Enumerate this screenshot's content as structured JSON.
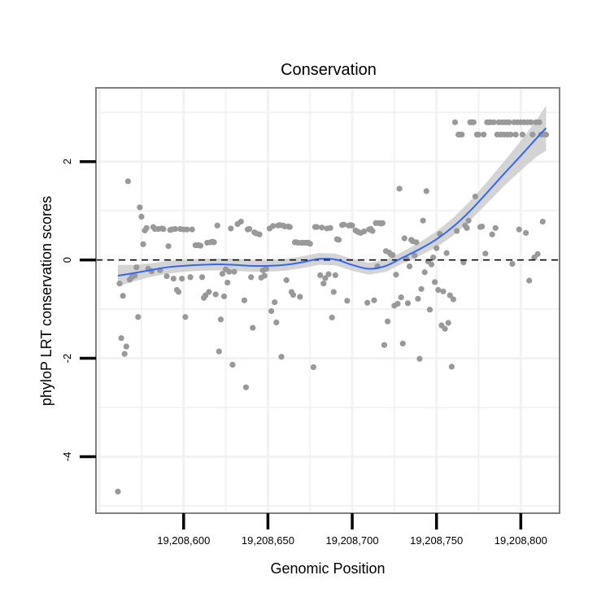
{
  "chart_data": {
    "type": "scatter",
    "title": "Conservation",
    "xlabel": "Genomic Position",
    "ylabel": "phyloP LRT conservation scores",
    "xlim": [
      19208548,
      19208823
    ],
    "ylim": [
      -5.15,
      3.5
    ],
    "x_ticks": [
      19208600,
      19208650,
      19208700,
      19208750,
      19208800
    ],
    "x_tick_labels": [
      "19,208,600",
      "19,208,650",
      "19,208,700",
      "19,208,750",
      "19,208,800"
    ],
    "y_ticks": [
      2,
      0,
      -2,
      -4
    ],
    "y_tick_labels": [
      "2",
      "0",
      "-2",
      "-4"
    ],
    "reference_line": 0,
    "colors": {
      "points": "#999999",
      "smooth": "#3366FF",
      "band": "#cccccc",
      "panel_border": "#808080",
      "grid": "#f2f2f2"
    },
    "points": [
      [
        19208561,
        -4.71
      ],
      [
        19208562,
        -0.48
      ],
      [
        19208563,
        -1.59
      ],
      [
        19208564,
        -0.73
      ],
      [
        19208565,
        -1.91
      ],
      [
        19208566,
        -1.76
      ],
      [
        19208567,
        1.6
      ],
      [
        19208568,
        -0.4
      ],
      [
        19208569,
        -0.36
      ],
      [
        19208570,
        -0.32
      ],
      [
        19208571,
        -0.32
      ],
      [
        19208572,
        -0.15
      ],
      [
        19208573,
        -1.16
      ],
      [
        19208574,
        1.07
      ],
      [
        19208575,
        0.88
      ],
      [
        19208576,
        0.32
      ],
      [
        19208577,
        0.6
      ],
      [
        19208578,
        0.65
      ],
      [
        19208579,
        -0.18
      ],
      [
        19208581,
        -0.23
      ],
      [
        19208582,
        0.67
      ],
      [
        19208583,
        0.63
      ],
      [
        19208585,
        0.63
      ],
      [
        19208586,
        -0.21
      ],
      [
        19208587,
        0.64
      ],
      [
        19208588,
        0.63
      ],
      [
        19208590,
        -0.33
      ],
      [
        19208591,
        0.28
      ],
      [
        19208592,
        0.61
      ],
      [
        19208593,
        0.62
      ],
      [
        19208594,
        -0.38
      ],
      [
        19208595,
        0.63
      ],
      [
        19208596,
        -0.61
      ],
      [
        19208597,
        -0.65
      ],
      [
        19208598,
        0.63
      ],
      [
        19208599,
        -0.38
      ],
      [
        19208600,
        0.62
      ],
      [
        19208601,
        -1.16
      ],
      [
        19208602,
        0.62
      ],
      [
        19208604,
        -0.35
      ],
      [
        19208605,
        0.62
      ],
      [
        19208607,
        0.3
      ],
      [
        19208608,
        0.3
      ],
      [
        19208609,
        0.3
      ],
      [
        19208610,
        0.29
      ],
      [
        19208611,
        -0.35
      ],
      [
        19208612,
        -0.77
      ],
      [
        19208613,
        -0.72
      ],
      [
        19208614,
        0.35
      ],
      [
        19208615,
        -0.65
      ],
      [
        19208616,
        0.36
      ],
      [
        19208617,
        0.37
      ],
      [
        19208618,
        0.36
      ],
      [
        19208619,
        -0.7
      ],
      [
        19208620,
        0.7
      ],
      [
        19208621,
        -1.86
      ],
      [
        19208622,
        -1.21
      ],
      [
        19208623,
        -0.28
      ],
      [
        19208624,
        -0.74
      ],
      [
        19208625,
        -0.19
      ],
      [
        19208626,
        -0.46
      ],
      [
        19208627,
        -0.24
      ],
      [
        19208628,
        0.64
      ],
      [
        19208629,
        -2.13
      ],
      [
        19208630,
        -0.24
      ],
      [
        19208632,
        0.73
      ],
      [
        19208634,
        0.78
      ],
      [
        19208636,
        -0.82
      ],
      [
        19208637,
        -2.59
      ],
      [
        19208638,
        0.62
      ],
      [
        19208639,
        0.63
      ],
      [
        19208640,
        -0.35
      ],
      [
        19208641,
        -1.38
      ],
      [
        19208642,
        0.56
      ],
      [
        19208643,
        0.54
      ],
      [
        19208645,
        0.52
      ],
      [
        19208646,
        -0.36
      ],
      [
        19208647,
        -0.21
      ],
      [
        19208648,
        -0.32
      ],
      [
        19208649,
        -0.18
      ],
      [
        19208651,
        0.64
      ],
      [
        19208652,
        -1.04
      ],
      [
        19208653,
        0.69
      ],
      [
        19208654,
        -0.86
      ],
      [
        19208655,
        -1.27
      ],
      [
        19208656,
        0.7
      ],
      [
        19208657,
        0.71
      ],
      [
        19208658,
        -1.97
      ],
      [
        19208659,
        0.7
      ],
      [
        19208660,
        0.68
      ],
      [
        19208661,
        -0.41
      ],
      [
        19208662,
        0.68
      ],
      [
        19208663,
        0.67
      ],
      [
        19208664,
        -0.65
      ],
      [
        19208665,
        -0.71
      ],
      [
        19208666,
        0.36
      ],
      [
        19208667,
        0.36
      ],
      [
        19208668,
        0.35
      ],
      [
        19208669,
        -0.75
      ],
      [
        19208670,
        0.35
      ],
      [
        19208671,
        0.35
      ],
      [
        19208672,
        0.35
      ],
      [
        19208673,
        0.35
      ],
      [
        19208674,
        0.35
      ],
      [
        19208675,
        0.33
      ],
      [
        19208677,
        -2.18
      ],
      [
        19208678,
        0.67
      ],
      [
        19208679,
        0.67
      ],
      [
        19208681,
        -0.31
      ],
      [
        19208682,
        0.66
      ],
      [
        19208683,
        -0.48
      ],
      [
        19208684,
        -0.37
      ],
      [
        19208685,
        0.64
      ],
      [
        19208686,
        -0.29
      ],
      [
        19208687,
        0.65
      ],
      [
        19208688,
        -1.17
      ],
      [
        19208689,
        -0.65
      ],
      [
        19208690,
        -0.31
      ],
      [
        19208691,
        0.42
      ],
      [
        19208692,
        0.41
      ],
      [
        19208694,
        0.71
      ],
      [
        19208695,
        0.72
      ],
      [
        19208697,
        -0.83
      ],
      [
        19208698,
        0.7
      ],
      [
        19208699,
        0.71
      ],
      [
        19208700,
        0.7
      ],
      [
        19208702,
        0.6
      ],
      [
        19208703,
        0.58
      ],
      [
        19208704,
        0.56
      ],
      [
        19208705,
        0.55
      ],
      [
        19208707,
        0.58
      ],
      [
        19208709,
        -0.87
      ],
      [
        19208710,
        0.62
      ],
      [
        19208711,
        0.63
      ],
      [
        19208712,
        0.59
      ],
      [
        19208713,
        -0.82
      ],
      [
        19208714,
        0.75
      ],
      [
        19208715,
        -0.13
      ],
      [
        19208716,
        0.75
      ],
      [
        19208717,
        0.74
      ],
      [
        19208718,
        0.75
      ],
      [
        19208719,
        -1.73
      ],
      [
        19208720,
        0.18
      ],
      [
        19208721,
        -1.25
      ],
      [
        19208722,
        0.15
      ],
      [
        19208723,
        0.11
      ],
      [
        19208724,
        0.1
      ],
      [
        19208725,
        -0.93
      ],
      [
        19208726,
        -0.3
      ],
      [
        19208727,
        -0.89
      ],
      [
        19208728,
        1.45
      ],
      [
        19208729,
        -0.76
      ],
      [
        19208730,
        -1.7
      ],
      [
        19208731,
        0.44
      ],
      [
        19208732,
        0.03
      ],
      [
        19208733,
        -0.88
      ],
      [
        19208734,
        -0.13
      ],
      [
        19208735,
        0.41
      ],
      [
        19208736,
        0.38
      ],
      [
        19208737,
        0.09
      ],
      [
        19208738,
        0.36
      ],
      [
        19208739,
        -0.79
      ],
      [
        19208740,
        -2.01
      ],
      [
        19208741,
        -0.59
      ],
      [
        19208742,
        0.8
      ],
      [
        19208743,
        -0.25
      ],
      [
        19208744,
        1.4
      ],
      [
        19208745,
        -0.03
      ],
      [
        19208746,
        -1.01
      ],
      [
        19208747,
        -0.09
      ],
      [
        19208748,
        0.05
      ],
      [
        19208749,
        -0.45
      ],
      [
        19208750,
        0.24
      ],
      [
        19208751,
        -0.61
      ],
      [
        19208752,
        0.53
      ],
      [
        19208753,
        -1.33
      ],
      [
        19208754,
        -0.64
      ],
      [
        19208755,
        -1.4
      ],
      [
        19208756,
        0.14
      ],
      [
        19208757,
        -1.28
      ],
      [
        19208758,
        -0.72
      ],
      [
        19208759,
        -2.17
      ],
      [
        19208760,
        -0.8
      ],
      [
        19208761,
        2.8
      ],
      [
        19208762,
        0.59
      ],
      [
        19208763,
        2.55
      ],
      [
        19208764,
        2.55
      ],
      [
        19208765,
        2.55
      ],
      [
        19208766,
        -0.05
      ],
      [
        19208767,
        0.7
      ],
      [
        19208768,
        0.65
      ],
      [
        19208769,
        0.8
      ],
      [
        19208770,
        2.8
      ],
      [
        19208771,
        2.8
      ],
      [
        19208772,
        2.8
      ],
      [
        19208773,
        1.29
      ],
      [
        19208774,
        2.55
      ],
      [
        19208775,
        2.55
      ],
      [
        19208776,
        0.67
      ],
      [
        19208777,
        0.68
      ],
      [
        19208778,
        2.55
      ],
      [
        19208779,
        0.13
      ],
      [
        19208780,
        2.8
      ],
      [
        19208781,
        2.8
      ],
      [
        19208782,
        2.8
      ],
      [
        19208783,
        0.52
      ],
      [
        19208784,
        2.8
      ],
      [
        19208785,
        0.65
      ],
      [
        19208786,
        2.55
      ],
      [
        19208787,
        2.8
      ],
      [
        19208788,
        2.55
      ],
      [
        19208789,
        2.8
      ],
      [
        19208790,
        2.55
      ],
      [
        19208791,
        2.8
      ],
      [
        19208792,
        2.55
      ],
      [
        19208793,
        2.8
      ],
      [
        19208794,
        2.55
      ],
      [
        19208795,
        -0.08
      ],
      [
        19208796,
        2.8
      ],
      [
        19208797,
        2.55
      ],
      [
        19208798,
        2.8
      ],
      [
        19208799,
        0.62
      ],
      [
        19208800,
        2.8
      ],
      [
        19208801,
        2.55
      ],
      [
        19208802,
        2.8
      ],
      [
        19208803,
        0.55
      ],
      [
        19208804,
        2.8
      ],
      [
        19208805,
        -0.42
      ],
      [
        19208806,
        2.8
      ],
      [
        19208807,
        2.55
      ],
      [
        19208808,
        0.05
      ],
      [
        19208809,
        2.8
      ],
      [
        19208810,
        0.12
      ],
      [
        19208811,
        2.8
      ],
      [
        19208812,
        2.55
      ],
      [
        19208813,
        0.78
      ],
      [
        19208814,
        2.55
      ],
      [
        19208815,
        2.55
      ]
    ],
    "smooth": {
      "x": [
        19208561,
        19208570,
        19208580,
        19208590,
        19208600,
        19208610,
        19208620,
        19208630,
        19208640,
        19208650,
        19208660,
        19208670,
        19208680,
        19208690,
        19208700,
        19208710,
        19208720,
        19208730,
        19208740,
        19208750,
        19208760,
        19208770,
        19208780,
        19208790,
        19208800,
        19208810,
        19208815
      ],
      "y": [
        -0.32,
        -0.27,
        -0.21,
        -0.15,
        -0.12,
        -0.1,
        -0.09,
        -0.1,
        -0.12,
        -0.12,
        -0.1,
        -0.05,
        0.02,
        0.01,
        -0.1,
        -0.18,
        -0.12,
        0.05,
        0.22,
        0.42,
        0.68,
        1.0,
        1.37,
        1.75,
        2.12,
        2.5,
        2.68
      ],
      "ci": [
        0.22,
        0.17,
        0.14,
        0.13,
        0.12,
        0.12,
        0.12,
        0.12,
        0.12,
        0.12,
        0.12,
        0.12,
        0.12,
        0.12,
        0.12,
        0.12,
        0.12,
        0.12,
        0.14,
        0.16,
        0.18,
        0.2,
        0.22,
        0.25,
        0.3,
        0.38,
        0.46
      ]
    }
  }
}
